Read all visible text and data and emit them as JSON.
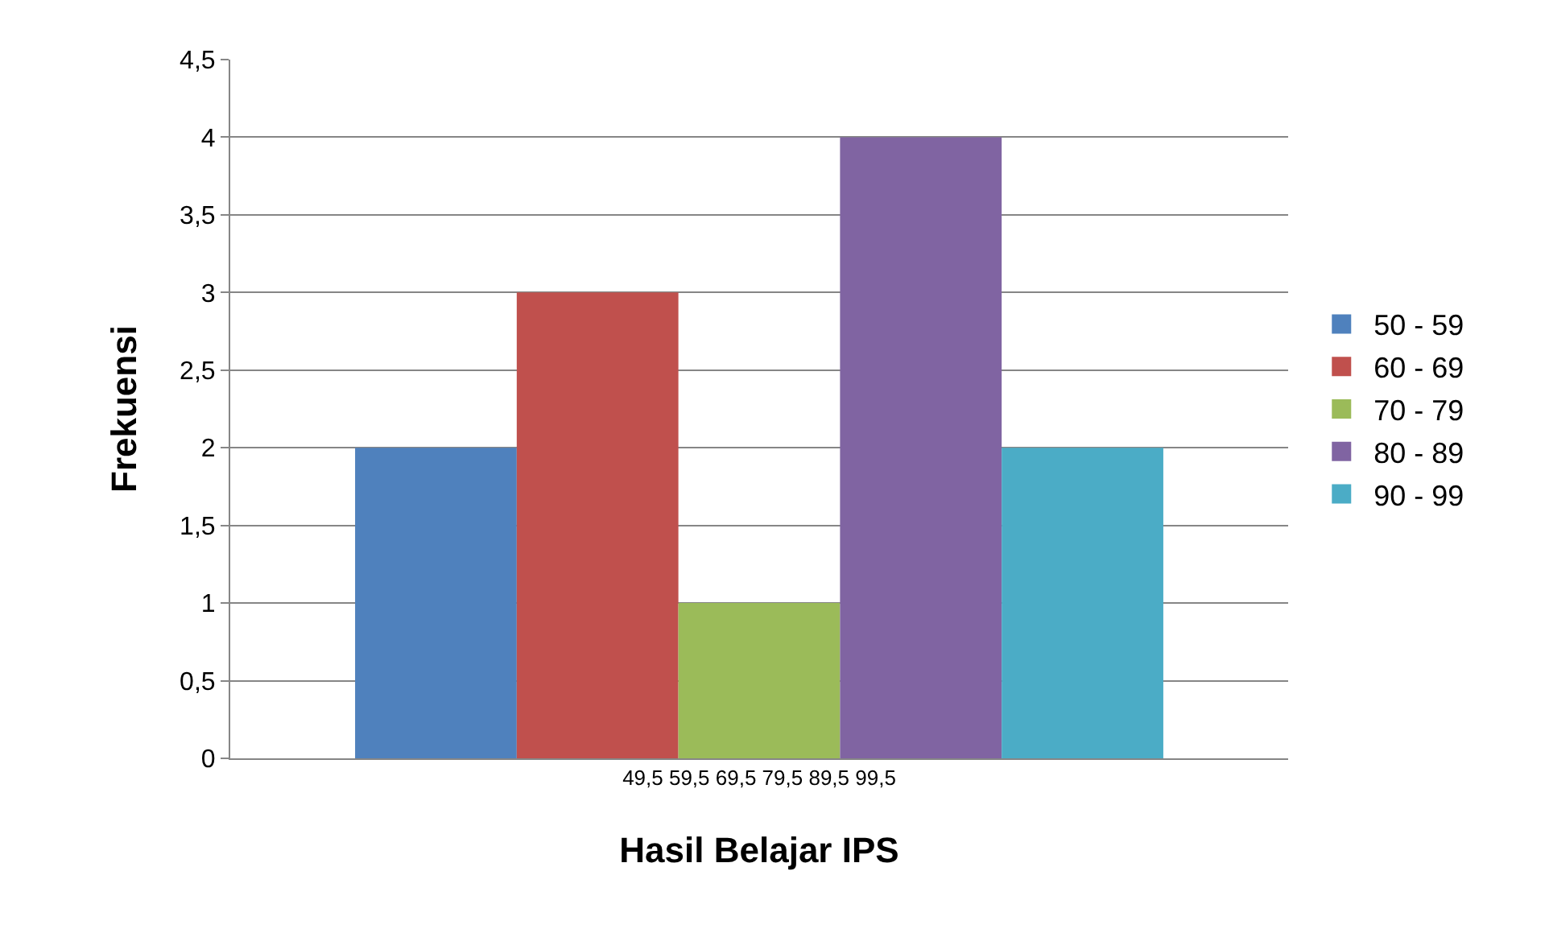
{
  "chart_data": {
    "type": "bar",
    "xlabel": "Hasil Belajar IPS",
    "ylabel": "Frekuensi",
    "categories": [
      "49,5 59,5 69,5 79,5 89,5 99,5"
    ],
    "series": [
      {
        "name": "50 - 59",
        "color": "#4f81bd",
        "values": [
          2
        ]
      },
      {
        "name": "60 - 69",
        "color": "#c0504d",
        "values": [
          3
        ]
      },
      {
        "name": "70 - 79",
        "color": "#9bbb59",
        "values": [
          1
        ]
      },
      {
        "name": "80 - 89",
        "color": "#8064a2",
        "values": [
          4
        ]
      },
      {
        "name": "90 - 99",
        "color": "#4bacc6",
        "values": [
          2
        ]
      }
    ],
    "ylim": [
      0,
      4.5
    ],
    "yticks": [
      0,
      {
        "value": 0.5,
        "label": "0,5"
      },
      1,
      {
        "value": 1.5,
        "label": "1,5"
      },
      2,
      {
        "value": 2.5,
        "label": "2,5"
      },
      3,
      {
        "value": 3.5,
        "label": "3,5"
      },
      4,
      {
        "value": 4.5,
        "label": "4,5"
      }
    ],
    "grid": "y",
    "legend": "right"
  }
}
